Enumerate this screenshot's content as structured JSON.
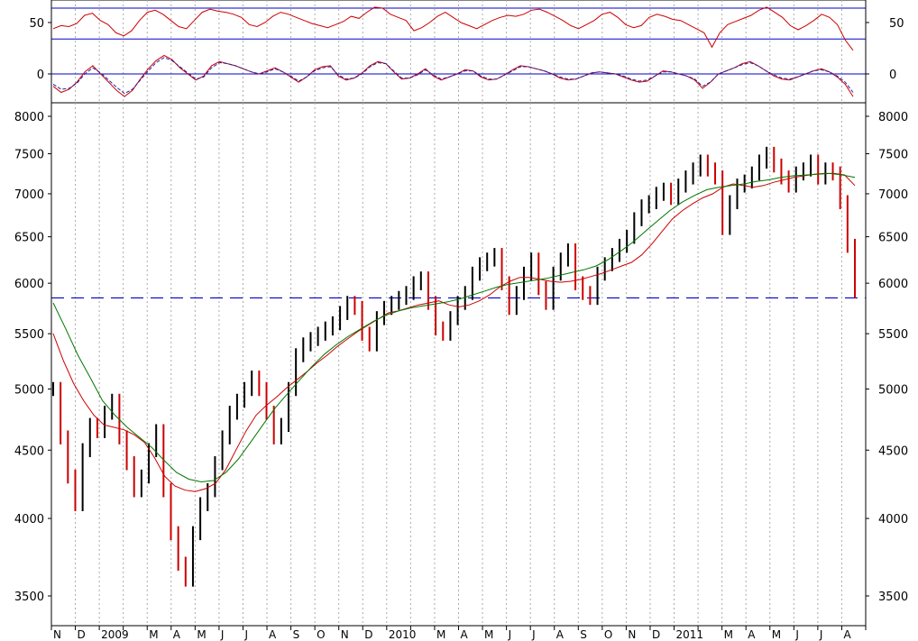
{
  "chart_data": [
    {
      "type": "line",
      "panel": "oscillator",
      "title": "",
      "y_ticks": [
        {
          "label": "50",
          "value": 50
        },
        {
          "label": "0",
          "value": 0
        }
      ],
      "reference_lines": [
        64,
        34,
        0,
        -30
      ],
      "series": [
        {
          "name": "",
          "color": "#cc0000",
          "style": "solid",
          "values": [
            44,
            47,
            46,
            49,
            57,
            59,
            52,
            48,
            40,
            37,
            42,
            52,
            60,
            62,
            58,
            52,
            46,
            44,
            52,
            60,
            63,
            61,
            60,
            58,
            55,
            48,
            46,
            50,
            56,
            60,
            58,
            55,
            52,
            49,
            47,
            45,
            48,
            51,
            56,
            54,
            60,
            65,
            64,
            58,
            55,
            52,
            42,
            45,
            50,
            56,
            60,
            55,
            50,
            47,
            44,
            48,
            52,
            55,
            57,
            56,
            58,
            62,
            63,
            60,
            56,
            52,
            47,
            44,
            48,
            52,
            58,
            60,
            55,
            48,
            45,
            47,
            55,
            58,
            56,
            53,
            52,
            48,
            44,
            40,
            26,
            40,
            48,
            51,
            54,
            57,
            62,
            65,
            60,
            55,
            47,
            43,
            47,
            52,
            58,
            55,
            48,
            33,
            23
          ]
        },
        {
          "name": "",
          "color": "#cc0000",
          "style": "solid",
          "values": [
            -12,
            -18,
            -15,
            -8,
            2,
            8,
            0,
            -8,
            -16,
            -22,
            -16,
            -5,
            5,
            13,
            18,
            14,
            6,
            0,
            -6,
            -2,
            8,
            12,
            10,
            8,
            5,
            2,
            0,
            3,
            6,
            2,
            -3,
            -8,
            -3,
            4,
            7,
            8,
            -2,
            -6,
            -4,
            1,
            8,
            12,
            10,
            2,
            -5,
            -4,
            0,
            5,
            -2,
            -6,
            -3,
            0,
            4,
            3,
            -3,
            -6,
            -5,
            -1,
            4,
            8,
            7,
            5,
            3,
            0,
            -4,
            -6,
            -5,
            -2,
            1,
            2,
            1,
            0,
            -3,
            -6,
            -8,
            -7,
            -2,
            3,
            2,
            0,
            -2,
            -6,
            -14,
            -8,
            0,
            3,
            6,
            10,
            12,
            8,
            3,
            -2,
            -5,
            -6,
            -3,
            0,
            3,
            5,
            2,
            -3,
            -10,
            -22
          ]
        },
        {
          "name": "",
          "color": "#2222aa",
          "style": "dashed",
          "values": [
            -10,
            -15,
            -14,
            -9,
            0,
            6,
            1,
            -6,
            -13,
            -19,
            -15,
            -6,
            3,
            11,
            16,
            13,
            7,
            1,
            -5,
            -3,
            6,
            11,
            10,
            8,
            5,
            2,
            0,
            2,
            5,
            2,
            -2,
            -7,
            -3,
            3,
            6,
            7,
            -1,
            -5,
            -4,
            0,
            7,
            11,
            10,
            3,
            -4,
            -4,
            -1,
            4,
            -1,
            -5,
            -3,
            0,
            3,
            3,
            -2,
            -5,
            -5,
            -1,
            3,
            7,
            7,
            5,
            3,
            0,
            -3,
            -5,
            -5,
            -2,
            1,
            2,
            1,
            0,
            -2,
            -5,
            -7,
            -6,
            -2,
            2,
            2,
            0,
            -2,
            -5,
            -12,
            -8,
            0,
            3,
            6,
            9,
            11,
            8,
            3,
            -1,
            -4,
            -5,
            -3,
            0,
            3,
            4,
            2,
            -2,
            -8,
            -18
          ]
        }
      ]
    },
    {
      "type": "line",
      "panel": "price",
      "title": "",
      "y_scale": "log",
      "y_ticks": [
        {
          "label": "8000",
          "value": 8000
        },
        {
          "label": "7500",
          "value": 7500
        },
        {
          "label": "7000",
          "value": 7000
        },
        {
          "label": "6500",
          "value": 6500
        },
        {
          "label": "6000",
          "value": 6000
        },
        {
          "label": "5500",
          "value": 5500
        },
        {
          "label": "5000",
          "value": 5000
        },
        {
          "label": "4500",
          "value": 4500
        },
        {
          "label": "4000",
          "value": 4000
        },
        {
          "label": "3500",
          "value": 3500
        }
      ],
      "x_ticks": [
        {
          "label": "N",
          "pos": 0
        },
        {
          "label": "D",
          "pos": 1
        },
        {
          "label": "2009",
          "pos": 2
        },
        {
          "label": "M",
          "pos": 4
        },
        {
          "label": "A",
          "pos": 5
        },
        {
          "label": "M",
          "pos": 6
        },
        {
          "label": "J",
          "pos": 7
        },
        {
          "label": "J",
          "pos": 8
        },
        {
          "label": "A",
          "pos": 9
        },
        {
          "label": "S",
          "pos": 10
        },
        {
          "label": "O",
          "pos": 11
        },
        {
          "label": "N",
          "pos": 12
        },
        {
          "label": "D",
          "pos": 13
        },
        {
          "label": "2010",
          "pos": 14
        },
        {
          "label": "M",
          "pos": 16
        },
        {
          "label": "A",
          "pos": 17
        },
        {
          "label": "M",
          "pos": 18
        },
        {
          "label": "J",
          "pos": 19
        },
        {
          "label": "J",
          "pos": 20
        },
        {
          "label": "A",
          "pos": 21
        },
        {
          "label": "S",
          "pos": 22
        },
        {
          "label": "O",
          "pos": 23
        },
        {
          "label": "N",
          "pos": 24
        },
        {
          "label": "D",
          "pos": 25
        },
        {
          "label": "2011",
          "pos": 26
        },
        {
          "label": "M",
          "pos": 28
        },
        {
          "label": "A",
          "pos": 29
        },
        {
          "label": "M",
          "pos": 30
        },
        {
          "label": "J",
          "pos": 31
        },
        {
          "label": "J",
          "pos": 32
        },
        {
          "label": "A",
          "pos": 33
        }
      ],
      "reference_line": 5850,
      "series": [
        {
          "name": "",
          "color": "#000000",
          "style": "candles",
          "values": [
            5000,
            4600,
            4300,
            4100,
            4500,
            4700,
            4650,
            4800,
            4900,
            4600,
            4400,
            4200,
            4300,
            4500,
            4650,
            4200,
            3900,
            3700,
            3600,
            3900,
            4100,
            4200,
            4400,
            4600,
            4800,
            4900,
            5000,
            5100,
            5000,
            4800,
            4600,
            4700,
            5000,
            5300,
            5400,
            5450,
            5500,
            5550,
            5600,
            5700,
            5800,
            5750,
            5500,
            5400,
            5650,
            5750,
            5800,
            5850,
            5900,
            6000,
            6050,
            5800,
            5550,
            5500,
            5650,
            5800,
            5900,
            6100,
            6200,
            6250,
            6300,
            6000,
            5750,
            5900,
            6100,
            6250,
            5950,
            5800,
            6100,
            6250,
            6350,
            6000,
            5900,
            5850,
            6100,
            6200,
            6300,
            6400,
            6500,
            6700,
            6850,
            6900,
            7000,
            7050,
            6950,
            7100,
            7200,
            7300,
            7400,
            7300,
            7200,
            6600,
            6900,
            7100,
            7150,
            7250,
            7400,
            7500,
            7350,
            7200,
            7100,
            7250,
            7300,
            7400,
            7200,
            7300,
            7250,
            6900,
            6400,
            5920
          ]
        },
        {
          "name": "",
          "color": "#cc0000",
          "style": "solid",
          "values": [
            5500,
            5250,
            5050,
            4900,
            4780,
            4700,
            4680,
            4660,
            4620,
            4560,
            4440,
            4300,
            4230,
            4200,
            4190,
            4210,
            4250,
            4350,
            4500,
            4650,
            4780,
            4860,
            4930,
            5010,
            5080,
            5150,
            5230,
            5300,
            5380,
            5450,
            5520,
            5580,
            5640,
            5700,
            5720,
            5750,
            5780,
            5800,
            5820,
            5780,
            5760,
            5780,
            5820,
            5880,
            5960,
            6020,
            6060,
            6060,
            6040,
            6020,
            6010,
            6020,
            6040,
            6070,
            6100,
            6140,
            6180,
            6220,
            6300,
            6420,
            6560,
            6700,
            6800,
            6880,
            6950,
            7000,
            7080,
            7120,
            7100,
            7080,
            7100,
            7140,
            7170,
            7200,
            7220,
            7240,
            7250,
            7250,
            7230,
            7100
          ]
        },
        {
          "name": "",
          "color": "#007700",
          "style": "solid",
          "values": [
            5800,
            5550,
            5300,
            5100,
            4900,
            4780,
            4680,
            4600,
            4520,
            4420,
            4330,
            4280,
            4260,
            4270,
            4330,
            4430,
            4560,
            4700,
            4840,
            4960,
            5080,
            5200,
            5310,
            5400,
            5480,
            5550,
            5620,
            5680,
            5720,
            5750,
            5770,
            5790,
            5810,
            5840,
            5880,
            5920,
            5960,
            5990,
            6010,
            6030,
            6050,
            6080,
            6110,
            6140,
            6180,
            6250,
            6340,
            6440,
            6560,
            6680,
            6800,
            6900,
            6980,
            7050,
            7080,
            7100,
            7120,
            7150,
            7170,
            7200,
            7220,
            7230,
            7240,
            7250,
            7230,
            7200
          ]
        }
      ]
    }
  ]
}
